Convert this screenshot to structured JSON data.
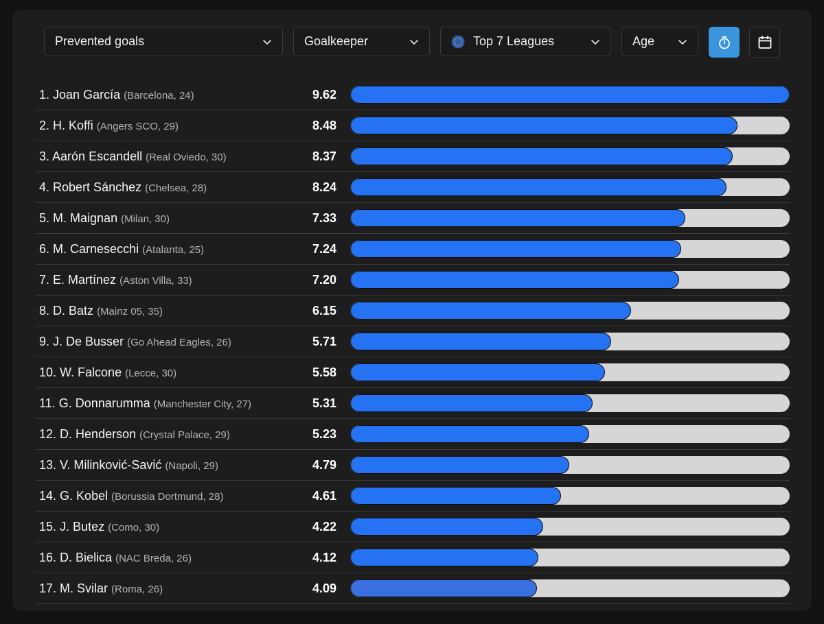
{
  "filters": {
    "metric": "Prevented goals",
    "position": "Goalkeeper",
    "league": "Top 7 Leagues",
    "sort": "Age"
  },
  "colors": {
    "bar": "#2572f2",
    "bar_alt": "#3a6fe0",
    "track": "#d6d6d6",
    "active_button": "#3a95dd"
  },
  "scale_max": 9.62,
  "players": [
    {
      "rank": "1.",
      "name": "Joan García",
      "meta": "(Barcelona, 24)",
      "value": "9.62",
      "num": 9.62
    },
    {
      "rank": "2.",
      "name": "H. Koffi",
      "meta": "(Angers SCO, 29)",
      "value": "8.48",
      "num": 8.48
    },
    {
      "rank": "3.",
      "name": "Aarón Escandell",
      "meta": "(Real Oviedo, 30)",
      "value": "8.37",
      "num": 8.37
    },
    {
      "rank": "4.",
      "name": "Robert Sánchez",
      "meta": "(Chelsea, 28)",
      "value": "8.24",
      "num": 8.24
    },
    {
      "rank": "5.",
      "name": "M. Maignan",
      "meta": "(Milan, 30)",
      "value": "7.33",
      "num": 7.33
    },
    {
      "rank": "6.",
      "name": "M. Carnesecchi",
      "meta": "(Atalanta, 25)",
      "value": "7.24",
      "num": 7.24
    },
    {
      "rank": "7.",
      "name": "E. Martínez",
      "meta": "(Aston Villa, 33)",
      "value": "7.20",
      "num": 7.2
    },
    {
      "rank": "8.",
      "name": "D. Batz",
      "meta": "(Mainz 05, 35)",
      "value": "6.15",
      "num": 6.15
    },
    {
      "rank": "9.",
      "name": "J. De Busser",
      "meta": "(Go Ahead Eagles, 26)",
      "value": "5.71",
      "num": 5.71
    },
    {
      "rank": "10.",
      "name": "W. Falcone",
      "meta": "(Lecce, 30)",
      "value": "5.58",
      "num": 5.58
    },
    {
      "rank": "11.",
      "name": "G. Donnarumma",
      "meta": "(Manchester City, 27)",
      "value": "5.31",
      "num": 5.31
    },
    {
      "rank": "12.",
      "name": "D. Henderson",
      "meta": "(Crystal Palace, 29)",
      "value": "5.23",
      "num": 5.23
    },
    {
      "rank": "13.",
      "name": "V. Milinković-Savić",
      "meta": "(Napoli, 29)",
      "value": "4.79",
      "num": 4.79
    },
    {
      "rank": "14.",
      "name": "G. Kobel",
      "meta": "(Borussia Dortmund, 28)",
      "value": "4.61",
      "num": 4.61
    },
    {
      "rank": "15.",
      "name": "J. Butez",
      "meta": "(Como, 30)",
      "value": "4.22",
      "num": 4.22
    },
    {
      "rank": "16.",
      "name": "D. Bielica",
      "meta": "(NAC Breda, 26)",
      "value": "4.12",
      "num": 4.12
    },
    {
      "rank": "17.",
      "name": "M. Svilar",
      "meta": "(Roma, 26)",
      "value": "4.09",
      "num": 4.09
    }
  ]
}
